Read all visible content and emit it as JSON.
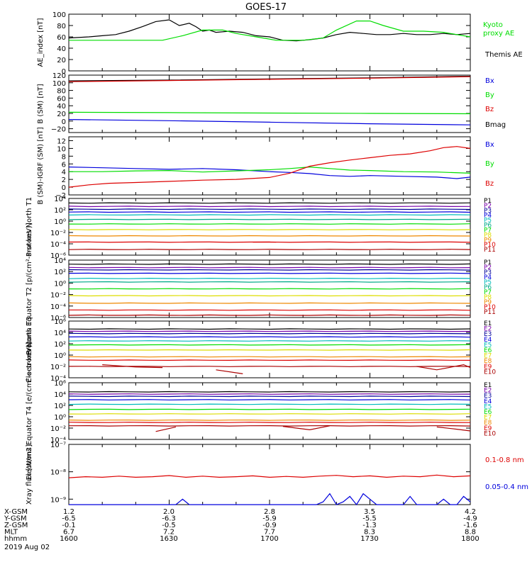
{
  "title": "GOES-17",
  "colors": {
    "black": "#000000",
    "green": "#00dd00",
    "blue": "#0000dd",
    "red": "#dd0000",
    "purple": "#7700aa",
    "dkblue": "#000099",
    "cyan": "#00bbbb",
    "teal": "#00aa88",
    "yellow": "#dddd00",
    "orange": "#ee8800",
    "dkred": "#aa0000"
  },
  "x_axis": {
    "rows": [
      {
        "label": "X-GSM",
        "values": [
          "1.2",
          "2.0",
          "2.8",
          "3.5",
          "4.2"
        ]
      },
      {
        "label": "Y-GSM",
        "values": [
          "-6.5",
          "-6.3",
          "-5.9",
          "-5.5",
          "-4.9"
        ]
      },
      {
        "label": "Z-GSM",
        "values": [
          "-0.1",
          "-0.5",
          "-0.9",
          "-1.3",
          "-1.6"
        ]
      },
      {
        "label": "MLT",
        "values": [
          "6.7",
          "7.2",
          "7.7",
          "8.3",
          "8.8"
        ]
      },
      {
        "label": "hhmm",
        "values": [
          "1600",
          "1630",
          "1700",
          "1730",
          "1800"
        ]
      }
    ],
    "date": "2019 Aug 02",
    "time_range_min": [
      0,
      120
    ]
  },
  "chart_data": [
    {
      "type": "line",
      "ylabel": "AE_index [nT]",
      "yrange": [
        0,
        100
      ],
      "yticks": [
        "0",
        "20",
        "40",
        "60",
        "80",
        "100"
      ],
      "legend": [
        {
          "name": "Kyoto proxy AE",
          "color": "green"
        },
        {
          "name": "Themis AE",
          "color": "black"
        }
      ],
      "series": [
        {
          "name": "Themis AE",
          "color": "black",
          "x": [
            0,
            6,
            10,
            14,
            18,
            22,
            26,
            30,
            33,
            36,
            38,
            40,
            42,
            44,
            48,
            52,
            56,
            60,
            64,
            68,
            72,
            76,
            80,
            84,
            88,
            92,
            96,
            100,
            104,
            108,
            112,
            116,
            120
          ],
          "y": [
            58,
            60,
            62,
            64,
            70,
            78,
            87,
            90,
            80,
            84,
            78,
            70,
            72,
            68,
            70,
            68,
            62,
            60,
            54,
            53,
            55,
            58,
            64,
            68,
            66,
            64,
            64,
            66,
            64,
            64,
            66,
            64,
            66
          ]
        },
        {
          "name": "Kyoto proxy AE",
          "color": "green",
          "x": [
            0,
            10,
            20,
            28,
            34,
            40,
            46,
            50,
            56,
            62,
            70,
            76,
            80,
            86,
            90,
            94,
            100,
            106,
            112,
            116,
            120
          ],
          "y": [
            54,
            54,
            54,
            54,
            62,
            72,
            72,
            66,
            60,
            54,
            54,
            58,
            72,
            88,
            88,
            80,
            70,
            70,
            68,
            64,
            60
          ]
        }
      ]
    },
    {
      "type": "line",
      "ylabel": "B (SM) [nT]",
      "yrange": [
        -30,
        120
      ],
      "yticks": [
        "−20",
        "0",
        "20",
        "40",
        "60",
        "80",
        "100",
        "120"
      ],
      "legend": [
        {
          "name": "Bx",
          "color": "blue"
        },
        {
          "name": "By",
          "color": "green"
        },
        {
          "name": "Bz",
          "color": "red"
        },
        {
          "name": "Bmag",
          "color": "black"
        }
      ],
      "series": [
        {
          "name": "Bmag",
          "color": "black",
          "x": [
            0,
            30,
            60,
            90,
            120
          ],
          "y": [
            105,
            107,
            110,
            113,
            117
          ]
        },
        {
          "name": "Bz",
          "color": "red",
          "x": [
            0,
            30,
            60,
            90,
            120
          ],
          "y": [
            103,
            106,
            109,
            112,
            116
          ]
        },
        {
          "name": "By",
          "color": "green",
          "x": [
            0,
            30,
            60,
            90,
            120
          ],
          "y": [
            23,
            22,
            21,
            20,
            19
          ]
        },
        {
          "name": "Bx",
          "color": "blue",
          "x": [
            0,
            30,
            60,
            90,
            120
          ],
          "y": [
            4,
            1,
            -3,
            -7,
            -10
          ]
        }
      ]
    },
    {
      "type": "line",
      "ylabel": "B (SM)-IGRF (SM) [nT]",
      "yrange": [
        -2,
        13
      ],
      "yticks": [
        "−2",
        "0",
        "2",
        "4",
        "6",
        "8",
        "10",
        "12"
      ],
      "legend": [
        {
          "name": "Bx",
          "color": "blue"
        },
        {
          "name": "By",
          "color": "green"
        },
        {
          "name": "Bz",
          "color": "red"
        }
      ],
      "series": [
        {
          "name": "Bx",
          "color": "blue",
          "x": [
            0,
            10,
            20,
            30,
            40,
            50,
            60,
            66,
            72,
            78,
            84,
            90,
            100,
            110,
            116,
            120
          ],
          "y": [
            5.2,
            5.0,
            4.8,
            4.6,
            4.8,
            4.5,
            4.0,
            3.8,
            3.5,
            3.0,
            2.8,
            3.0,
            2.8,
            2.6,
            2.2,
            2.6
          ]
        },
        {
          "name": "By",
          "color": "green",
          "x": [
            0,
            10,
            20,
            30,
            40,
            50,
            60,
            66,
            72,
            78,
            84,
            90,
            100,
            110,
            120
          ],
          "y": [
            4.0,
            4.0,
            4.2,
            4.3,
            3.9,
            4.2,
            4.5,
            4.8,
            5.2,
            4.8,
            4.4,
            4.3,
            4.0,
            3.9,
            3.6
          ]
        },
        {
          "name": "Bz",
          "color": "red",
          "x": [
            0,
            6,
            12,
            20,
            30,
            40,
            50,
            60,
            66,
            72,
            78,
            84,
            90,
            96,
            102,
            108,
            112,
            116,
            120
          ],
          "y": [
            0.0,
            0.6,
            1.0,
            1.2,
            1.5,
            1.8,
            2.0,
            2.5,
            3.6,
            5.4,
            6.3,
            7.0,
            7.6,
            8.2,
            8.6,
            9.4,
            10.2,
            10.5,
            10.0
          ]
        }
      ]
    },
    {
      "type": "line",
      "ylabel": "Protons North T1",
      "scale": "log",
      "ydecades": [
        -6,
        4
      ],
      "yticks": [
        "10⁴",
        "10²",
        "10⁰",
        "10⁻²",
        "10⁻⁴",
        "10⁻⁶"
      ],
      "channels": [
        {
          "name": "P1",
          "color": "black",
          "level": 3.2
        },
        {
          "name": "P2",
          "color": "purple",
          "level": 2.6
        },
        {
          "name": "P3",
          "color": "dkblue",
          "level": 2.1
        },
        {
          "name": "P4",
          "color": "blue",
          "level": 1.6
        },
        {
          "name": "P5",
          "color": "cyan",
          "level": 1.1
        },
        {
          "name": "P6",
          "color": "teal",
          "level": 0.3
        },
        {
          "name": "P7",
          "color": "green",
          "level": -0.5
        },
        {
          "name": "P8",
          "color": "yellow",
          "level": -1.5
        },
        {
          "name": "P9",
          "color": "orange",
          "level": -2.6
        },
        {
          "name": "P10",
          "color": "red",
          "level": -3.7
        },
        {
          "name": "P11",
          "color": "dkred",
          "level": -5.0
        }
      ],
      "fragments": [
        {
          "color": "red",
          "x": [
            55,
            62
          ],
          "y": [
            -3.7,
            -3.7
          ]
        }
      ]
    },
    {
      "type": "line",
      "ylabel": "Protons Equator T2 [p/(cm²-s-sr-keV)]",
      "scale": "log",
      "ydecades": [
        -6,
        4
      ],
      "yticks": [
        "10⁴",
        "10²",
        "10⁰",
        "10⁻²",
        "10⁻⁴",
        "10⁻⁶"
      ],
      "channels": [
        {
          "name": "P1",
          "color": "black",
          "level": 3.3
        },
        {
          "name": "P2",
          "color": "purple",
          "level": 2.7
        },
        {
          "name": "P3",
          "color": "dkblue",
          "level": 2.3
        },
        {
          "name": "P4",
          "color": "blue",
          "level": 1.7
        },
        {
          "name": "P5",
          "color": "cyan",
          "level": 0.8
        },
        {
          "name": "P6",
          "color": "teal",
          "level": 0.2
        },
        {
          "name": "P7",
          "color": "green",
          "level": -1.0
        },
        {
          "name": "P8",
          "color": "yellow",
          "level": -2.2
        },
        {
          "name": "P9",
          "color": "orange",
          "level": -3.5
        },
        {
          "name": "P10",
          "color": "red",
          "level": -4.7
        },
        {
          "name": "P11",
          "color": "dkred",
          "level": -5.6
        }
      ],
      "fragments": []
    },
    {
      "type": "line",
      "ylabel": "Electrons North T3",
      "scale": "log",
      "ydecades": [
        -4,
        6
      ],
      "yticks": [
        "10⁶",
        "10⁴",
        "10²",
        "10⁰",
        "10⁻²",
        "10⁻⁴"
      ],
      "channels": [
        {
          "name": "E1",
          "color": "black",
          "level": 4.6
        },
        {
          "name": "E2",
          "color": "purple",
          "level": 4.2
        },
        {
          "name": "E3",
          "color": "dkblue",
          "level": 3.8
        },
        {
          "name": "E4",
          "color": "blue",
          "level": 3.2
        },
        {
          "name": "E5",
          "color": "cyan",
          "level": 2.5
        },
        {
          "name": "E6",
          "color": "green",
          "level": 1.8
        },
        {
          "name": "E7",
          "color": "yellow",
          "level": 0.9
        },
        {
          "name": "E8",
          "color": "orange",
          "level": -0.3
        },
        {
          "name": "E9",
          "color": "red",
          "level": -0.9
        },
        {
          "name": "E10",
          "color": "dkred",
          "level": -2.0
        }
      ],
      "fragments": [
        {
          "color": "dkred",
          "x": [
            10,
            20,
            28
          ],
          "y": [
            -1.7,
            -2.1,
            -2.2
          ]
        },
        {
          "color": "dkred",
          "x": [
            44,
            52
          ],
          "y": [
            -2.6,
            -3.3
          ]
        },
        {
          "color": "dkred",
          "x": [
            104,
            110,
            118,
            120
          ],
          "y": [
            -2.0,
            -2.6,
            -1.7,
            -2.2
          ]
        }
      ]
    },
    {
      "type": "line",
      "ylabel": "Electrons Equator T4 [e/(cm²-s-sr-keV)]",
      "scale": "log",
      "ydecades": [
        -4,
        6
      ],
      "yticks": [
        "10⁶",
        "10⁴",
        "10²",
        "10⁰",
        "10⁻²",
        "10⁻⁴"
      ],
      "channels": [
        {
          "name": "E1",
          "color": "black",
          "level": 4.4
        },
        {
          "name": "E2",
          "color": "purple",
          "level": 4.0
        },
        {
          "name": "E3",
          "color": "dkblue",
          "level": 3.6
        },
        {
          "name": "E4",
          "color": "blue",
          "level": 3.0
        },
        {
          "name": "E5",
          "color": "cyan",
          "level": 2.2
        },
        {
          "name": "E6",
          "color": "green",
          "level": 1.3
        },
        {
          "name": "E7",
          "color": "yellow",
          "level": 0.5
        },
        {
          "name": "E8",
          "color": "orange",
          "level": -0.6
        },
        {
          "name": "E9",
          "color": "red",
          "level": -1.0
        },
        {
          "name": "E10",
          "color": "dkred",
          "level": -1.6
        }
      ],
      "fragments": [
        {
          "color": "dkred",
          "x": [
            26,
            32
          ],
          "y": [
            -2.6,
            -1.8
          ]
        },
        {
          "color": "dkred",
          "x": [
            64,
            72,
            78
          ],
          "y": [
            -1.7,
            -2.3,
            -1.6
          ]
        },
        {
          "color": "dkred",
          "x": [
            110,
            116,
            120
          ],
          "y": [
            -1.8,
            -2.2,
            -2.5
          ]
        }
      ]
    },
    {
      "type": "line",
      "ylabel": "Xray flux [W/m2]",
      "scale": "log",
      "ydecades": [
        -9.2,
        -7
      ],
      "yticks": [
        "10⁻⁷",
        "10⁻⁸",
        "10⁻⁹"
      ],
      "legend": [
        {
          "name": "0.1-0.8 nm",
          "color": "red"
        },
        {
          "name": "0.05-0.4 nm",
          "color": "blue"
        }
      ],
      "series": [
        {
          "name": "0.1-0.8 nm",
          "color": "red",
          "x": [
            0,
            5,
            10,
            15,
            20,
            25,
            30,
            35,
            40,
            45,
            50,
            55,
            60,
            65,
            70,
            75,
            80,
            85,
            90,
            95,
            100,
            105,
            110,
            115,
            120
          ],
          "y": [
            -8.22,
            -8.18,
            -8.2,
            -8.16,
            -8.2,
            -8.18,
            -8.14,
            -8.2,
            -8.16,
            -8.2,
            -8.18,
            -8.15,
            -8.2,
            -8.17,
            -8.2,
            -8.16,
            -8.13,
            -8.18,
            -8.15,
            -8.2,
            -8.16,
            -8.18,
            -8.12,
            -8.18,
            -8.15
          ]
        },
        {
          "name": "0.05-0.4 nm",
          "color": "blue",
          "x": [
            0,
            32,
            34,
            36,
            38,
            70,
            74,
            76,
            78,
            80,
            82,
            84,
            86,
            88,
            90,
            92,
            94,
            100,
            102,
            104,
            106,
            110,
            112,
            114,
            116,
            118,
            120
          ],
          "y": [
            -9.2,
            -9.2,
            -9.0,
            -9.2,
            -9.2,
            -9.2,
            -9.2,
            -9.1,
            -8.8,
            -9.2,
            -9.1,
            -8.9,
            -9.2,
            -8.8,
            -9.0,
            -9.2,
            -9.2,
            -9.2,
            -8.9,
            -9.2,
            -9.2,
            -9.2,
            -9.0,
            -9.2,
            -9.2,
            -8.9,
            -9.1
          ]
        }
      ]
    }
  ]
}
